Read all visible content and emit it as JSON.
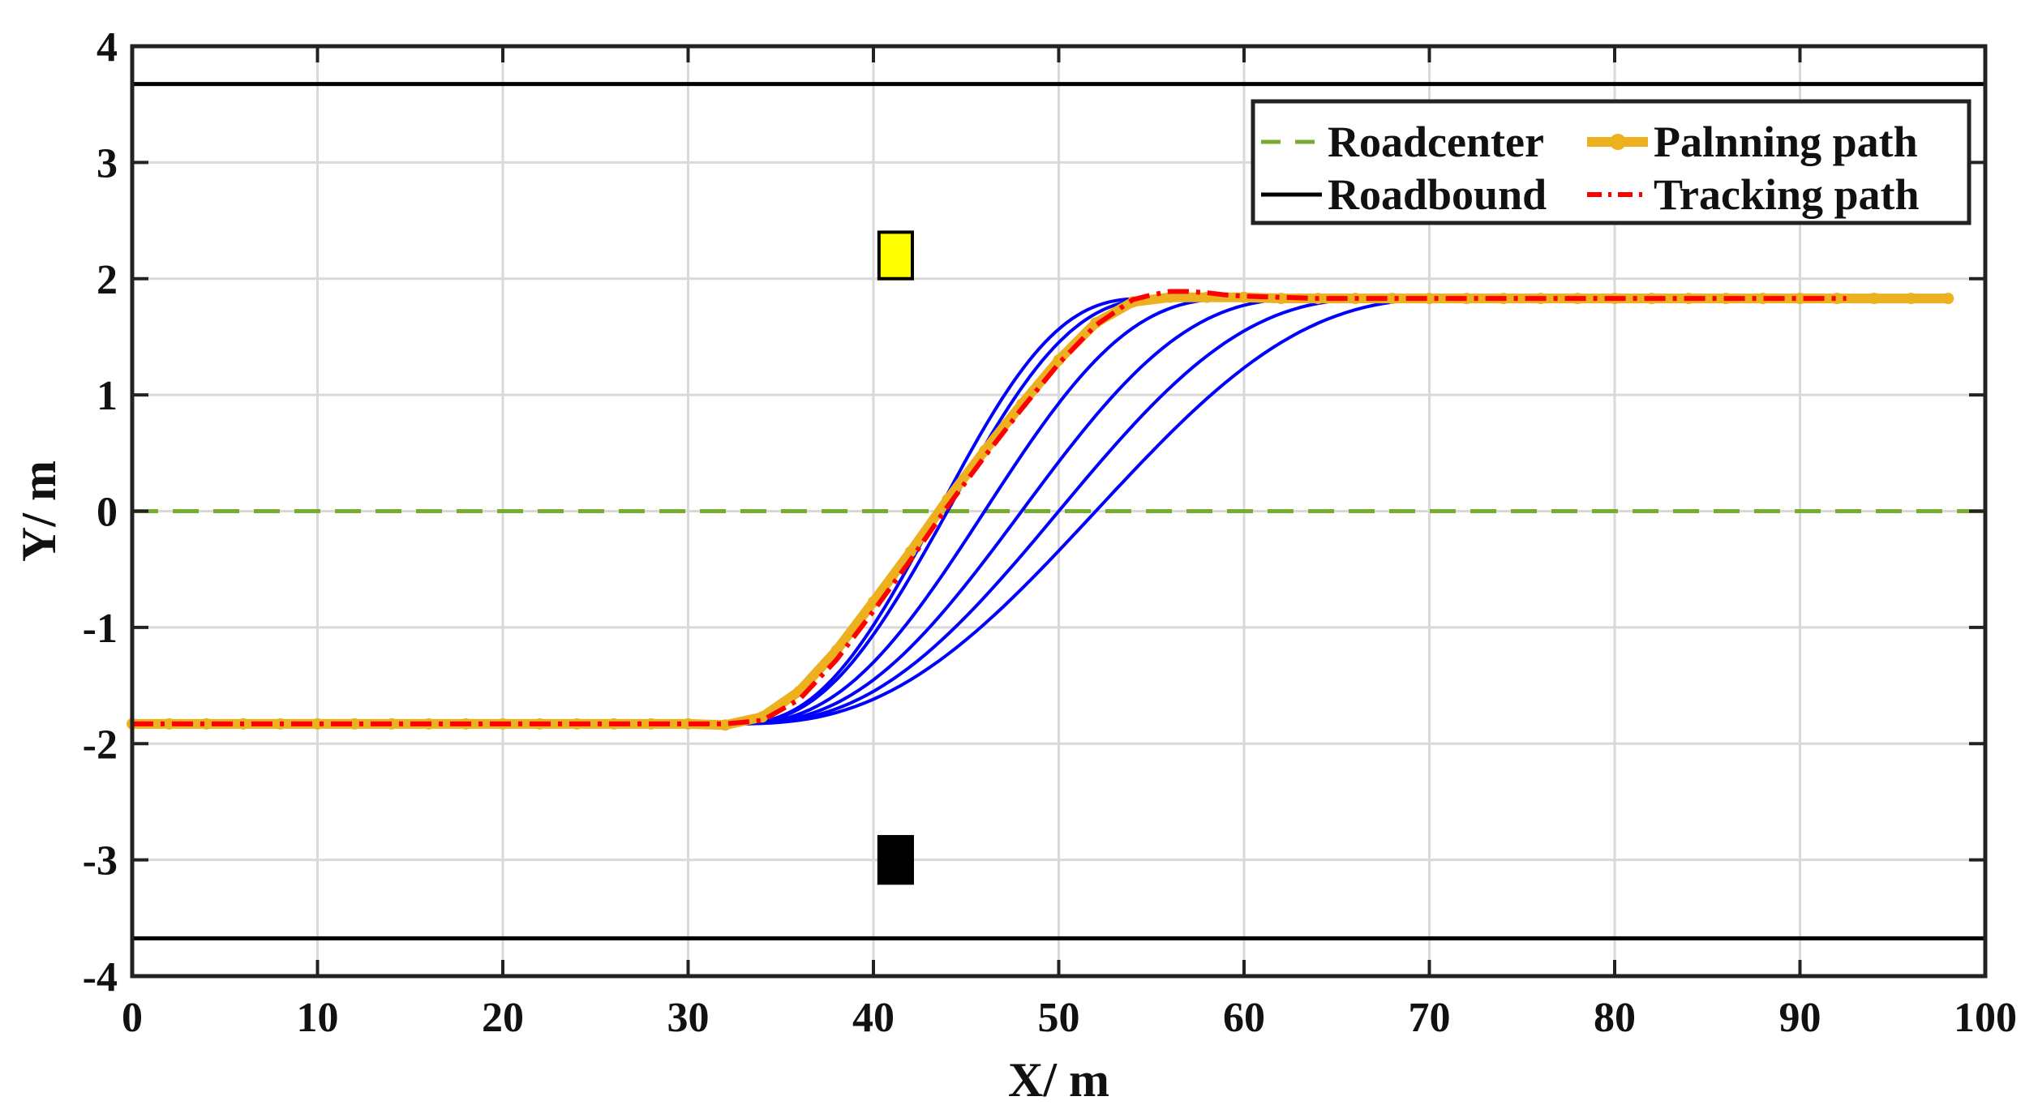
{
  "chart_data": {
    "type": "line",
    "xlabel": "X/ m",
    "ylabel": "Y/ m",
    "xlim": [
      0,
      100
    ],
    "ylim": [
      -4,
      4
    ],
    "xticks": [
      0,
      10,
      20,
      30,
      40,
      50,
      60,
      70,
      80,
      90,
      100
    ],
    "yticks": [
      -4,
      -3,
      -2,
      -1,
      0,
      1,
      2,
      3,
      4
    ],
    "grid": true,
    "legend_position": "top-right",
    "legend": {
      "roadcenter": "Roadcenter",
      "roadbound": "Roadbound",
      "planning": "Palnning path",
      "tracking": "Tracking path"
    },
    "colors": {
      "roadcenter": "#77ac30",
      "roadbound": "#000000",
      "planning": "#edb120",
      "tracking": "#ff0000",
      "candidate": "#0000ff",
      "obstacle_yellow": "#ffff00",
      "obstacle_black": "#000000"
    },
    "roadcenter": {
      "y": 0
    },
    "roadbound": {
      "y": [
        3.675,
        -3.675
      ]
    },
    "planning_path": {
      "x": [
        0,
        30,
        32,
        34,
        36,
        38,
        40,
        42,
        44,
        46,
        48,
        50,
        52,
        54,
        56,
        58,
        60,
        62,
        64,
        98
      ],
      "y": [
        -1.83,
        -1.83,
        -1.84,
        -1.77,
        -1.55,
        -1.2,
        -0.78,
        -0.35,
        0.1,
        0.52,
        0.92,
        1.3,
        1.62,
        1.8,
        1.84,
        1.84,
        1.84,
        1.83,
        1.83,
        1.83
      ],
      "marker_step": 2
    },
    "tracking_path": {
      "x": [
        0,
        32,
        34,
        36,
        38,
        40,
        42,
        44,
        46,
        48,
        50,
        52,
        54,
        55,
        56,
        57,
        58,
        59,
        60,
        62,
        64,
        66,
        92.5
      ],
      "y": [
        -1.83,
        -1.83,
        -1.8,
        -1.62,
        -1.28,
        -0.86,
        -0.42,
        0.04,
        0.47,
        0.88,
        1.27,
        1.6,
        1.82,
        1.86,
        1.89,
        1.89,
        1.88,
        1.86,
        1.85,
        1.84,
        1.83,
        1.83,
        1.83
      ]
    },
    "candidate_paths": [
      {
        "x0": 32,
        "x1": 55,
        "y0": -1.83,
        "y1": 1.83
      },
      {
        "x0": 32,
        "x1": 56,
        "y0": -1.83,
        "y1": 1.83
      },
      {
        "x0": 32,
        "x1": 60,
        "y0": -1.83,
        "y1": 1.83
      },
      {
        "x0": 32,
        "x1": 64,
        "y0": -1.83,
        "y1": 1.83
      },
      {
        "x0": 32,
        "x1": 68,
        "y0": -1.83,
        "y1": 1.83
      },
      {
        "x0": 32,
        "x1": 72,
        "y0": -1.83,
        "y1": 1.83
      }
    ],
    "obstacles": [
      {
        "name": "obstacle-yellow",
        "x": [
          40.3,
          42.1
        ],
        "y": [
          2.0,
          2.4
        ],
        "color": "obstacle_yellow"
      },
      {
        "name": "obstacle-black",
        "x": [
          40.3,
          42.1
        ],
        "y": [
          -3.2,
          -2.8
        ],
        "color": "obstacle_black"
      }
    ]
  }
}
